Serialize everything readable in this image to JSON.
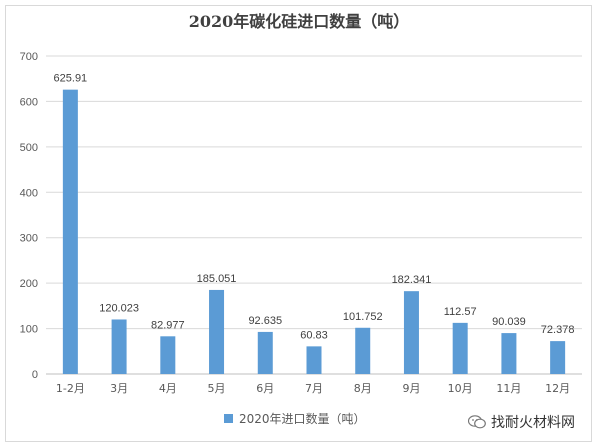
{
  "chart_data": {
    "type": "bar",
    "title": "2020年碳化硅进口数量（吨）",
    "categories": [
      "1-2月",
      "3月",
      "4月",
      "5月",
      "6月",
      "7月",
      "8月",
      "9月",
      "10月",
      "11月",
      "12月"
    ],
    "series": [
      {
        "name": "2020年进口数量（吨）",
        "values": [
          625.91,
          120.023,
          82.977,
          185.051,
          92.635,
          60.83,
          101.752,
          182.341,
          112.57,
          90.039,
          72.378
        ],
        "labels": [
          "625.91",
          "120.023",
          "82.977",
          "185.051",
          "92.635",
          "60.83",
          "101.752",
          "182.341",
          "112.57",
          "90.039",
          "72.378"
        ],
        "color": "#5b9bd5"
      }
    ],
    "ylim": [
      0,
      700
    ],
    "yticks": [
      0,
      100,
      200,
      300,
      400,
      500,
      600,
      700
    ],
    "grid": true,
    "legend": "bottom"
  },
  "watermark": {
    "text": "找耐火材料网",
    "icon": "wechat-icon"
  }
}
